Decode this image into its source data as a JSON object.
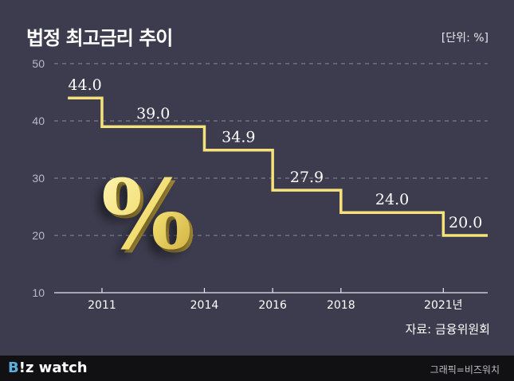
{
  "header": {
    "title": "법정 최고금리 추이",
    "unit": "[단위: %]"
  },
  "source": "자료: 금융위원회",
  "footer": {
    "brand_prefix": "B",
    "brand_rest": "!z watch",
    "credit": "그래픽=비즈워치"
  },
  "decoration": {
    "percent_symbol": "%"
  },
  "colors": {
    "background": "#3c3c4e",
    "line": "#f5e27a",
    "footer_bg": "#111114",
    "brand_accent": "#5aaee0"
  },
  "chart_data": {
    "type": "line",
    "step": true,
    "x_ticks": [
      {
        "value": 2011,
        "label": "2011"
      },
      {
        "value": 2014,
        "label": "2014"
      },
      {
        "value": 2016,
        "label": "2016"
      },
      {
        "value": 2018,
        "label": "2018"
      },
      {
        "value": 2021,
        "label": "2021년"
      }
    ],
    "y_ticks": [
      10,
      20,
      30,
      40,
      50
    ],
    "ylim": [
      10,
      50
    ],
    "xlim": [
      2009.6,
      2022.3
    ],
    "grid": true,
    "series": [
      {
        "points": [
          {
            "x": 2010,
            "y": 44.0,
            "label": "44.0"
          },
          {
            "x": 2011,
            "y": 39.0,
            "label": "39.0"
          },
          {
            "x": 2014,
            "y": 34.9,
            "label": "34.9"
          },
          {
            "x": 2016,
            "y": 27.9,
            "label": "27.9"
          },
          {
            "x": 2018,
            "y": 24.0,
            "label": "24.0"
          },
          {
            "x": 2021,
            "y": 20.0,
            "label": "20.0"
          }
        ],
        "end_x": 2022.3
      }
    ]
  }
}
